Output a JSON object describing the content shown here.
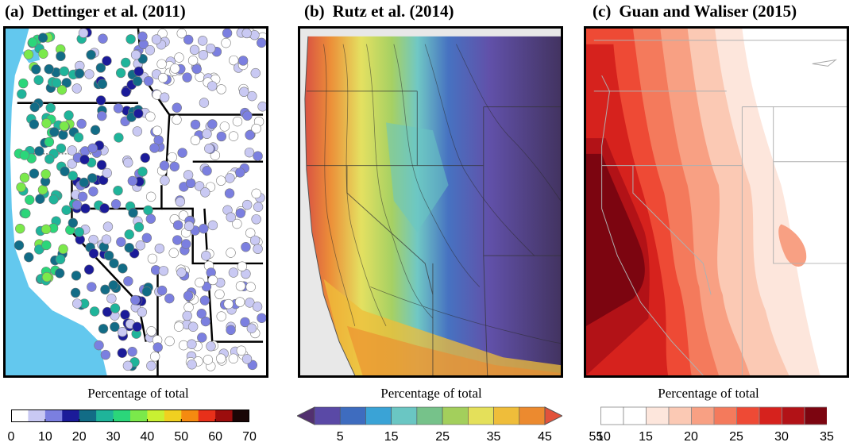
{
  "panels": [
    {
      "label": "(a)",
      "title": "Dettinger et al. (2011)",
      "colorbar_title": "Percentage of total",
      "ticks": [
        "0",
        "10",
        "20",
        "30",
        "40",
        "50",
        "60",
        "70"
      ],
      "colorbar_colors": [
        "#ffffff",
        "#c9c9f3",
        "#7b7fe0",
        "#1b1b99",
        "#126c86",
        "#1fb49a",
        "#2bd67a",
        "#7be94b",
        "#c9f032",
        "#f0d020",
        "#f58a10",
        "#e8301a",
        "#9c0d0d",
        "#1a0606"
      ]
    },
    {
      "label": "(b)",
      "title": "Rutz et al. (2014)",
      "colorbar_title": "Percentage of total",
      "ticks": [
        "5",
        "15",
        "25",
        "35",
        "45",
        "55"
      ],
      "colorbar_colors": [
        "#52306f",
        "#5a49a6",
        "#3e6cbf",
        "#3aa3d6",
        "#6ac6c3",
        "#76c28a",
        "#a3cf5c",
        "#e4e05a",
        "#efbd3a",
        "#ec8a2f",
        "#e2523b"
      ]
    },
    {
      "label": "(c)",
      "title": "Guan and Waliser (2015)",
      "colorbar_title": "Percentage of total",
      "ticks": [
        "10",
        "15",
        "20",
        "25",
        "30",
        "35"
      ],
      "colorbar_colors": [
        "#ffffff",
        "#ffffff",
        "#fde6dc",
        "#fbc9b4",
        "#f8a083",
        "#f47a5c",
        "#ee4a35",
        "#d6221d",
        "#b21217",
        "#7c0510"
      ]
    }
  ]
}
